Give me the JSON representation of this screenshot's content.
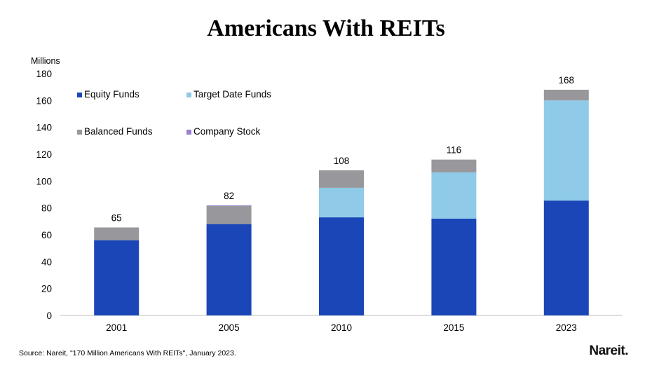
{
  "chart_data": {
    "type": "bar",
    "stacked": true,
    "title": "Americans With REITs",
    "ylabel": "Millions",
    "xlabel": "",
    "ylim": [
      0,
      180
    ],
    "yticks": [
      0,
      20,
      40,
      60,
      80,
      100,
      120,
      140,
      160,
      180
    ],
    "grid": false,
    "legend_position": "top-left",
    "categories": [
      "2001",
      "2005",
      "2010",
      "2015",
      "2023"
    ],
    "series": [
      {
        "name": "Equity Funds",
        "color": "#1b46b8",
        "values": [
          56,
          68,
          73,
          72,
          85.5
        ]
      },
      {
        "name": "Target Date Funds",
        "color": "#8fcbe8",
        "values": [
          0,
          0,
          22,
          34.5,
          74.5
        ]
      },
      {
        "name": "Balanced Funds",
        "color": "#98989c",
        "values": [
          9.5,
          13.5,
          13,
          9.5,
          8
        ]
      },
      {
        "name": "Company Stock",
        "color": "#9a7fd1",
        "values": [
          0,
          0.5,
          0,
          0,
          0
        ]
      }
    ],
    "totals": [
      "65",
      "82",
      "108",
      "116",
      "168"
    ]
  },
  "source": "Source: Nareit, \"170 Million Americans With REITs\", January 2023.",
  "logo": "Nareit."
}
